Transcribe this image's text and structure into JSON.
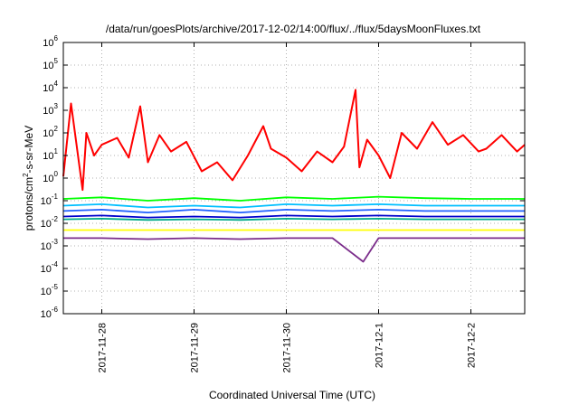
{
  "chart_data": {
    "type": "line",
    "title": "/data/run/goesPlots/archive/2017-12-02/14:00/flux/../flux/5daysMoonFluxes.txt",
    "xlabel": "Coordinated Universal Time (UTC)",
    "ylabel_main": "protons/cm",
    "ylabel_sup": "2",
    "ylabel_tail": "-s-sr-MeV",
    "y_scale": "log",
    "ylim": [
      1e-06,
      1000000.0
    ],
    "y_ticks": [
      {
        "value": 1e-06,
        "base": "10",
        "exp": "-6"
      },
      {
        "value": 1e-05,
        "base": "10",
        "exp": "-5"
      },
      {
        "value": 0.0001,
        "base": "10",
        "exp": "-4"
      },
      {
        "value": 0.001,
        "base": "10",
        "exp": "-3"
      },
      {
        "value": 0.01,
        "base": "10",
        "exp": "-2"
      },
      {
        "value": 0.1,
        "base": "10",
        "exp": "-1"
      },
      {
        "value": 1,
        "base": "10",
        "exp": "0"
      },
      {
        "value": 10,
        "base": "10",
        "exp": "1"
      },
      {
        "value": 100,
        "base": "10",
        "exp": "2"
      },
      {
        "value": 1000,
        "base": "10",
        "exp": "3"
      },
      {
        "value": 10000,
        "base": "10",
        "exp": "4"
      },
      {
        "value": 100000,
        "base": "10",
        "exp": "5"
      },
      {
        "value": 1000000,
        "base": "10",
        "exp": "6"
      }
    ],
    "xlim": [
      "2017-11-27T14:00",
      "2017-12-02T14:00"
    ],
    "x_ticks": [
      "2017-11-28",
      "2017-11-29",
      "2017-11-30",
      "2017-12-1",
      "2017-12-2"
    ],
    "grid": true,
    "legend": "none",
    "series": [
      {
        "color": "#ff0000",
        "x": [
          "2017-11-27T14:00",
          "2017-11-27T16:00",
          "2017-11-27T19:00",
          "2017-11-27T20:00",
          "2017-11-27T22:00",
          "2017-11-28T00:00",
          "2017-11-28T04:00",
          "2017-11-28T07:00",
          "2017-11-28T10:00",
          "2017-11-28T12:00",
          "2017-11-28T15:00",
          "2017-11-28T18:00",
          "2017-11-28T22:00",
          "2017-11-29T02:00",
          "2017-11-29T06:00",
          "2017-11-29T10:00",
          "2017-11-29T14:00",
          "2017-11-29T18:00",
          "2017-11-29T20:00",
          "2017-11-30T00:00",
          "2017-11-30T04:00",
          "2017-11-30T08:00",
          "2017-11-30T12:00",
          "2017-11-30T15:00",
          "2017-11-30T18:00",
          "2017-11-30T19:00",
          "2017-11-30T21:00",
          "2017-12-01T00:00",
          "2017-12-01T03:00",
          "2017-12-01T06:00",
          "2017-12-01T10:00",
          "2017-12-01T14:00",
          "2017-12-01T18:00",
          "2017-12-01T22:00",
          "2017-12-02T02:00",
          "2017-12-02T04:00",
          "2017-12-02T08:00",
          "2017-12-02T12:00",
          "2017-12-02T14:00"
        ],
        "values": [
          1.2,
          2000,
          0.3,
          100,
          10,
          30,
          60,
          8,
          1500,
          5,
          80,
          15,
          40,
          2,
          5,
          0.8,
          10,
          200,
          20,
          8,
          2,
          15,
          5,
          25,
          8000,
          3,
          50,
          10,
          1,
          100,
          20,
          300,
          30,
          80,
          15,
          20,
          80,
          15,
          30
        ]
      },
      {
        "color": "#00ff00",
        "x": [
          "2017-11-27T14:00",
          "2017-11-28T00:00",
          "2017-11-28T12:00",
          "2017-11-29T00:00",
          "2017-11-29T12:00",
          "2017-11-30T00:00",
          "2017-11-30T12:00",
          "2017-12-01T00:00",
          "2017-12-01T12:00",
          "2017-12-02T00:00",
          "2017-12-02T14:00"
        ],
        "values": [
          0.12,
          0.14,
          0.1,
          0.13,
          0.1,
          0.14,
          0.12,
          0.15,
          0.13,
          0.12,
          0.12
        ]
      },
      {
        "color": "#00bfff",
        "x": [
          "2017-11-27T14:00",
          "2017-11-28T00:00",
          "2017-11-28T12:00",
          "2017-11-29T00:00",
          "2017-11-29T12:00",
          "2017-11-30T00:00",
          "2017-11-30T12:00",
          "2017-12-01T00:00",
          "2017-12-01T12:00",
          "2017-12-02T00:00",
          "2017-12-02T14:00"
        ],
        "values": [
          0.06,
          0.07,
          0.05,
          0.06,
          0.05,
          0.07,
          0.06,
          0.07,
          0.06,
          0.06,
          0.06
        ]
      },
      {
        "color": "#2060ff",
        "x": [
          "2017-11-27T14:00",
          "2017-11-28T00:00",
          "2017-11-28T12:00",
          "2017-11-29T00:00",
          "2017-11-29T12:00",
          "2017-11-30T00:00",
          "2017-11-30T12:00",
          "2017-12-01T00:00",
          "2017-12-01T12:00",
          "2017-12-02T00:00",
          "2017-12-02T14:00"
        ],
        "values": [
          0.035,
          0.04,
          0.03,
          0.04,
          0.03,
          0.04,
          0.035,
          0.04,
          0.035,
          0.035,
          0.035
        ]
      },
      {
        "color": "#00aa88",
        "x": [
          "2017-11-27T14:00",
          "2017-11-28T00:00",
          "2017-11-28T12:00",
          "2017-11-29T00:00",
          "2017-11-29T12:00",
          "2017-11-30T00:00",
          "2017-11-30T12:00",
          "2017-12-01T00:00",
          "2017-12-01T12:00",
          "2017-12-02T00:00",
          "2017-12-02T14:00"
        ],
        "values": [
          0.015,
          0.016,
          0.014,
          0.015,
          0.014,
          0.016,
          0.015,
          0.016,
          0.015,
          0.015,
          0.015
        ]
      },
      {
        "color": "#0000cc",
        "x": [
          "2017-11-27T14:00",
          "2017-11-28T00:00",
          "2017-11-28T12:00",
          "2017-11-29T00:00",
          "2017-11-29T12:00",
          "2017-11-30T00:00",
          "2017-11-30T12:00",
          "2017-12-01T00:00",
          "2017-12-01T12:00",
          "2017-12-02T00:00",
          "2017-12-02T14:00"
        ],
        "values": [
          0.02,
          0.022,
          0.018,
          0.02,
          0.018,
          0.022,
          0.02,
          0.022,
          0.02,
          0.02,
          0.02
        ]
      },
      {
        "color": "#ffff00",
        "x": [
          "2017-11-27T14:00",
          "2017-11-28T00:00",
          "2017-11-28T12:00",
          "2017-11-29T00:00",
          "2017-11-29T12:00",
          "2017-11-30T00:00",
          "2017-11-30T12:00",
          "2017-12-01T00:00",
          "2017-12-01T12:00",
          "2017-12-02T00:00",
          "2017-12-02T14:00"
        ],
        "values": [
          0.005,
          0.005,
          0.005,
          0.005,
          0.005,
          0.005,
          0.005,
          0.005,
          0.005,
          0.005,
          0.005
        ]
      },
      {
        "color": "#7b2d8b",
        "x": [
          "2017-11-27T14:00",
          "2017-11-28T00:00",
          "2017-11-28T12:00",
          "2017-11-29T00:00",
          "2017-11-29T12:00",
          "2017-11-30T00:00",
          "2017-11-30T12:00",
          "2017-11-30T20:00",
          "2017-12-01T00:00",
          "2017-12-01T12:00",
          "2017-12-02T00:00",
          "2017-12-02T14:00"
        ],
        "values": [
          0.0022,
          0.0022,
          0.002,
          0.0022,
          0.002,
          0.0022,
          0.0022,
          0.0002,
          0.0022,
          0.0022,
          0.0022,
          0.0022
        ]
      }
    ]
  }
}
